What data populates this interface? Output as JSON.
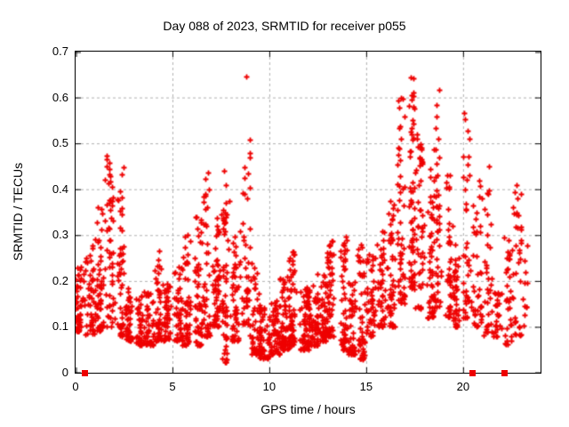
{
  "chart_data": {
    "type": "scatter",
    "title": "Day 088 of 2023, SRMTID for receiver p055",
    "xlabel": "GPS time / hours",
    "ylabel": "SRMTID / TECUs",
    "xlim": [
      0,
      24
    ],
    "ylim": [
      0,
      0.7
    ],
    "xticks": [
      0,
      5,
      10,
      15,
      20
    ],
    "xtick_labels": [
      "0",
      "5",
      "10",
      "15",
      "20"
    ],
    "yticks": [
      0,
      0.1,
      0.2,
      0.3,
      0.4,
      0.5,
      0.6,
      0.7
    ],
    "ytick_labels": [
      "0",
      "0.1",
      "0.2",
      "0.3",
      "0.4",
      "0.5",
      "0.6",
      "0.7"
    ],
    "grid": true,
    "legend_position": "none",
    "marker": {
      "shape": "plus",
      "color": "#ee0000",
      "size": 7
    },
    "grid_color": "#b0b0b0",
    "axis_color": "#000000",
    "series_name": "SRMTID",
    "density_bins_comment": "Each bin: [hour_start, hour_end, n_points, y_min, y_max, concentration_exponent] estimated from the plotted point cloud",
    "density_bins": [
      [
        0.0,
        0.5,
        55,
        0.09,
        0.24,
        1.6
      ],
      [
        0.5,
        1.0,
        45,
        0.08,
        0.3,
        2.0
      ],
      [
        1.0,
        1.5,
        50,
        0.09,
        0.37,
        1.8
      ],
      [
        1.5,
        2.0,
        55,
        0.1,
        0.48,
        1.4
      ],
      [
        2.0,
        2.5,
        50,
        0.08,
        0.46,
        1.8
      ],
      [
        2.5,
        3.0,
        45,
        0.07,
        0.2,
        1.8
      ],
      [
        3.0,
        3.5,
        45,
        0.06,
        0.17,
        1.6
      ],
      [
        3.5,
        4.0,
        45,
        0.06,
        0.18,
        1.6
      ],
      [
        4.0,
        4.5,
        48,
        0.07,
        0.28,
        2.0
      ],
      [
        4.5,
        5.0,
        45,
        0.07,
        0.2,
        1.7
      ],
      [
        5.0,
        5.5,
        45,
        0.07,
        0.24,
        1.9
      ],
      [
        5.5,
        6.0,
        48,
        0.06,
        0.3,
        2.0
      ],
      [
        6.0,
        6.5,
        48,
        0.06,
        0.34,
        2.0
      ],
      [
        6.5,
        7.0,
        48,
        0.08,
        0.44,
        1.9
      ],
      [
        7.0,
        7.5,
        55,
        0.1,
        0.35,
        1.6
      ],
      [
        7.5,
        8.0,
        55,
        0.02,
        0.38,
        1.5
      ],
      [
        8.0,
        8.5,
        50,
        0.07,
        0.3,
        1.7
      ],
      [
        8.5,
        9.0,
        45,
        0.1,
        0.51,
        1.4
      ],
      [
        9.0,
        9.5,
        50,
        0.04,
        0.27,
        1.9
      ],
      [
        9.5,
        10.0,
        55,
        0.03,
        0.15,
        1.5
      ],
      [
        10.0,
        10.5,
        55,
        0.04,
        0.16,
        1.5
      ],
      [
        10.5,
        11.0,
        60,
        0.05,
        0.21,
        1.7
      ],
      [
        11.0,
        11.5,
        60,
        0.06,
        0.27,
        1.9
      ],
      [
        11.5,
        12.0,
        60,
        0.05,
        0.19,
        1.6
      ],
      [
        12.0,
        12.5,
        55,
        0.06,
        0.19,
        1.6
      ],
      [
        12.5,
        13.0,
        55,
        0.07,
        0.22,
        1.7
      ],
      [
        13.0,
        13.5,
        55,
        0.08,
        0.29,
        1.8
      ],
      [
        13.5,
        14.0,
        50,
        0.05,
        0.3,
        1.9
      ],
      [
        14.0,
        14.5,
        45,
        0.04,
        0.2,
        1.6
      ],
      [
        14.5,
        15.0,
        45,
        0.03,
        0.3,
        1.9
      ],
      [
        15.0,
        15.5,
        45,
        0.08,
        0.26,
        1.7
      ],
      [
        15.5,
        16.0,
        45,
        0.1,
        0.31,
        1.7
      ],
      [
        16.0,
        16.5,
        50,
        0.1,
        0.38,
        1.7
      ],
      [
        16.5,
        17.0,
        55,
        0.15,
        0.6,
        1.5
      ],
      [
        17.0,
        17.5,
        60,
        0.18,
        0.65,
        1.5
      ],
      [
        17.5,
        18.0,
        50,
        0.14,
        0.52,
        1.6
      ],
      [
        18.0,
        18.5,
        48,
        0.12,
        0.46,
        1.6
      ],
      [
        18.5,
        19.0,
        48,
        0.14,
        0.62,
        1.5
      ],
      [
        19.0,
        19.5,
        42,
        0.12,
        0.5,
        1.7
      ],
      [
        19.5,
        20.0,
        38,
        0.1,
        0.3,
        1.6
      ],
      [
        20.0,
        20.5,
        42,
        0.12,
        0.6,
        1.8
      ],
      [
        20.5,
        21.0,
        40,
        0.1,
        0.46,
        1.7
      ],
      [
        21.0,
        21.5,
        35,
        0.08,
        0.45,
        1.9
      ],
      [
        21.5,
        22.0,
        25,
        0.08,
        0.2,
        1.5
      ],
      [
        22.0,
        22.5,
        32,
        0.06,
        0.3,
        1.7
      ],
      [
        22.5,
        23.0,
        36,
        0.08,
        0.42,
        1.6
      ],
      [
        23.0,
        23.3,
        12,
        0.1,
        0.35,
        1.7
      ]
    ],
    "outlier_points": [
      [
        8.82,
        0.645
      ],
      [
        7.68,
        0.44
      ],
      [
        7.75,
        0.41
      ]
    ],
    "baseline_square_markers_x": [
      0.46,
      20.45,
      22.1
    ]
  }
}
